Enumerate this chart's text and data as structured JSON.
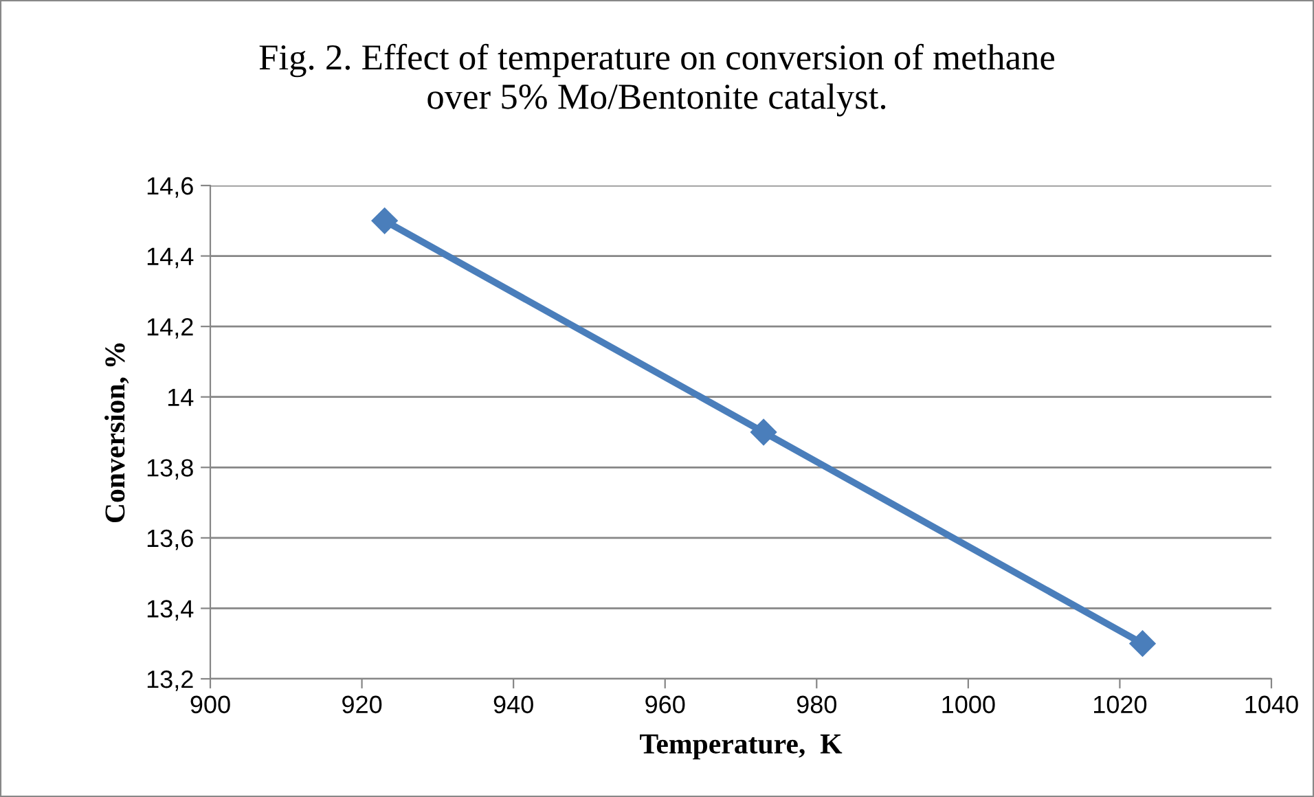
{
  "chart_data": {
    "type": "line",
    "title": "Fig. 2. Effect of temperature on conversion of methane\nover 5% Mo/Bentonite catalyst.",
    "xlabel": "Temperature,  K",
    "ylabel": "Conversion, %",
    "x": [
      923,
      973,
      1023
    ],
    "series": [
      {
        "color": "#4a7ebb",
        "values": [
          14.5,
          13.9,
          13.3
        ]
      }
    ],
    "xlim": [
      900,
      1040
    ],
    "xticks": [
      900,
      920,
      940,
      960,
      980,
      1000,
      1020,
      1040
    ],
    "ylim": [
      13.2,
      14.6
    ],
    "yticks": [
      {
        "value": 13.2,
        "label": "13,2"
      },
      {
        "value": 13.4,
        "label": "13,4"
      },
      {
        "value": 13.6,
        "label": "13,6"
      },
      {
        "value": 13.8,
        "label": "13,8"
      },
      14,
      {
        "value": 14.2,
        "label": "14,2"
      },
      {
        "value": 14.4,
        "label": "14,4"
      },
      {
        "value": 14.6,
        "label": "14,6"
      }
    ],
    "grid": "y",
    "marker": "diamond",
    "line_style": "solid",
    "legend": false
  }
}
